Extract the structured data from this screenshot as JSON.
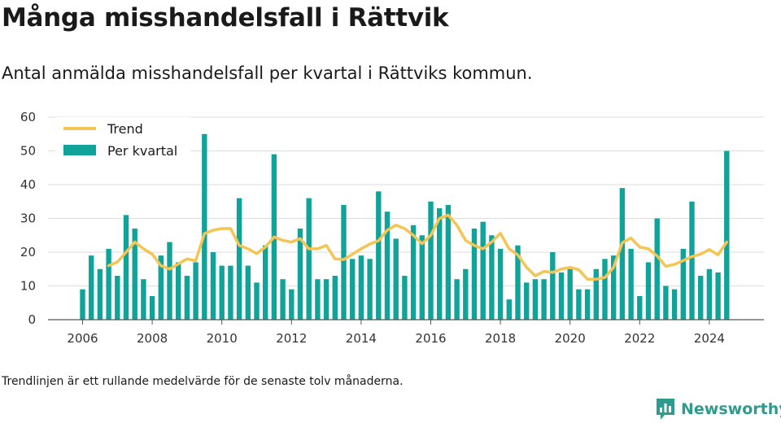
{
  "title": "Många misshandelsfall i Rättvik",
  "subtitle": "Antal anmälda misshandelsfall per kvartal i Rättviks kommun.",
  "footnote": "Trendlinjen är ett rullande medelvärde för de senaste tolv månaderna.",
  "brand": "Newsworthy",
  "colors": {
    "bars": "#0fa39a",
    "trend": "#f4c552",
    "grid": "#dddddd",
    "axis": "#555555",
    "brand": "#2e9b8e"
  },
  "chart_data": {
    "type": "bar",
    "legend": {
      "placement": "top-left",
      "trend_label": "Trend",
      "bars_label": "Per kvartal"
    },
    "ylim": [
      0,
      60
    ],
    "yticks": [
      0,
      10,
      20,
      30,
      40,
      50,
      60
    ],
    "xticks": [
      "2006",
      "2008",
      "2010",
      "2012",
      "2014",
      "2016",
      "2018",
      "2020",
      "2022",
      "2024"
    ],
    "grid": true,
    "start": "2006 Q1",
    "end": "2024 Q3",
    "series": [
      {
        "name": "Per kvartal",
        "type": "bar",
        "values": [
          9,
          19,
          15,
          21,
          13,
          31,
          27,
          12,
          7,
          19,
          23,
          17,
          13,
          17,
          55,
          20,
          16,
          16,
          36,
          16,
          11,
          22,
          49,
          12,
          9,
          27,
          36,
          12,
          12,
          13,
          34,
          18,
          19,
          18,
          38,
          32,
          24,
          13,
          28,
          25,
          35,
          33,
          34,
          12,
          15,
          27,
          29,
          25,
          21,
          6,
          22,
          11,
          12,
          12,
          20,
          14,
          15,
          9,
          9,
          15,
          18,
          19,
          39,
          21,
          7,
          17,
          30,
          10,
          9,
          21,
          35,
          13,
          15,
          14,
          50
        ]
      },
      {
        "name": "Trend",
        "type": "line",
        "values": [
          null,
          null,
          null,
          16,
          17.1,
          20,
          23,
          21,
          19.4,
          16,
          15,
          16.5,
          18,
          17.5,
          25.5,
          26.5,
          27,
          27,
          22,
          21,
          19.6,
          21.5,
          24.5,
          23.5,
          23,
          24,
          21,
          21,
          22,
          18,
          17.8,
          19.4,
          21,
          22.4,
          23.4,
          26.5,
          28,
          27,
          25,
          22.5,
          25,
          30,
          31,
          28,
          23.5,
          22,
          21,
          23,
          25.6,
          21,
          19.2,
          15.5,
          13,
          14.3,
          14,
          15,
          15.5,
          14.8,
          12,
          12,
          12.5,
          15.5,
          22.8,
          24.2,
          21.5,
          21,
          18.9,
          15.8,
          16.4,
          17.5,
          18.7,
          19.4,
          20.8,
          19.2,
          23
        ]
      }
    ]
  }
}
